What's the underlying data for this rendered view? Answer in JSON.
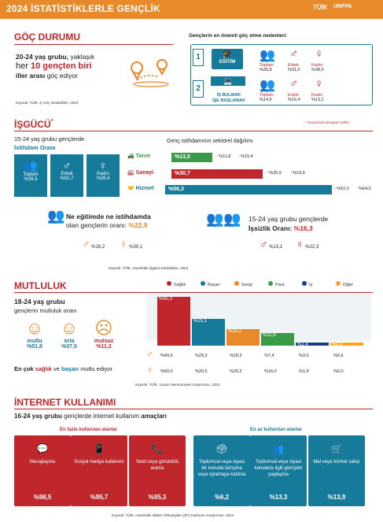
{
  "header": {
    "title": "2024 İSTATİSTİKLERLE GENÇLİK",
    "logo1": "TÜİK",
    "logo2": "UNFPA"
  },
  "goc": {
    "title": "GÖÇ DURUMU",
    "line1a": "20-24 yaş grubu,",
    "line1b": " yaklaşık",
    "line2a": "her ",
    "line2b": "10 gençten biri",
    "line3a": "iller arası",
    "line3b": " göç ediyor",
    "source": "Kaynak: TÜİK, İç Göç İstatistikleri, 2023",
    "reasons_title": "Gençlerin en önemli göç etme nedenleri:",
    "r1": {
      "num": "1",
      "label": "EĞİTİM",
      "toplam": "Toplam",
      "toplam_v": "%35,8",
      "erkek": "Erkek",
      "erkek_v": "%31,6",
      "kadin": "Kadın",
      "kadin_v": "%38,9"
    },
    "r2": {
      "num": "2",
      "label1": "İŞ BULMAK",
      "label2": "İŞE BAŞLAMAK",
      "toplam": "Toplam",
      "toplam_v": "%14,5",
      "erkek": "Erkek",
      "erkek_v": "%16,4",
      "kadin": "Kadın",
      "kadin_v": "%13,1"
    }
  },
  "isgucu": {
    "title": "İŞGÜCÜ",
    "star": "*",
    "note": "* Kurumsal olmayan nüfus",
    "sub1": "15-24 yaş grubu gençlerde",
    "sub2": "İstihdam Oranı",
    "boxes": [
      {
        "l": "Toplam",
        "v": "%39,5"
      },
      {
        "l": "Erkek",
        "v": "%51,7"
      },
      {
        "l": "Kadın",
        "v": "%26,4"
      }
    ],
    "sector_title": "Genç istihdamının sektörel dağılımı",
    "sectors": [
      {
        "name": "Tarım",
        "v": "%13,0",
        "m": "%11,8",
        "f": "%15,4",
        "color": "#3a9a48"
      },
      {
        "name": "Sanayi",
        "v": "%30,7",
        "m": "%35,9",
        "f": "%19,9",
        "color": "#c0272d"
      },
      {
        "name": "Hizmet",
        "v": "%56,3",
        "m": "%52,3",
        "f": "%64,0",
        "color": "#167a9b"
      }
    ],
    "neet_a": "Ne eğitimde ne istihdamda",
    "neet_b": "olan gençlerin oranı: ",
    "neet_v": "%22,9",
    "neet_m": "%16,2",
    "neet_f": "%30,1",
    "unemp_a": "15-24 yaş grubu gençlerde",
    "unemp_b": "İşsizlik Oranı: ",
    "unemp_v": "%16,3",
    "unemp_m": "%13,1",
    "unemp_f": "%22,3",
    "source": "Kaynak: TÜİK, Hanehalkı İşgücü İstatistikleri, 2024"
  },
  "mutluluk": {
    "title": "MUTLULUK",
    "sub1": "18-24 yaş grubu",
    "sub2": "gençlerin mutluluk oranı",
    "faces": [
      {
        "l": "mutlu",
        "v": "%51,8"
      },
      {
        "l": "orta",
        "v": "%37,0"
      },
      {
        "l": "mutsuz",
        "v": "%11,2"
      }
    ],
    "footer_a": "En çok ",
    "footer_b": "sağlık",
    "footer_c": " ve ",
    "footer_d": "başarı",
    "footer_e": " mutlu ediyor",
    "source": "Kaynak: TÜİK, Yaşam Memnuniyeti Araştırması, 2024",
    "legend": [
      {
        "l": "Sağlık",
        "c": "#c0272d"
      },
      {
        "l": "Başarı",
        "c": "#167a9b"
      },
      {
        "l": "Sevgi",
        "c": "#e8892a"
      },
      {
        "l": "Para",
        "c": "#3a9a48"
      },
      {
        "l": "İş",
        "c": "#1f3e8a"
      },
      {
        "l": "Diğer",
        "c": "#f5a623"
      }
    ],
    "chart_data": {
      "type": "bar",
      "categories": [
        "Sağlık",
        "Başarı",
        "Sevgi",
        "Para",
        "İş",
        "Diğer"
      ],
      "series": [
        {
          "values": [
            45.3,
            25.1,
            15.1,
            11.9,
            2.4,
            0.3
          ]
        },
        {
          "values": [
            40.9,
            29.3,
            18.3,
            7.4,
            3.0,
            0.6
          ]
        },
        {
          "values": [
            50.0,
            20.5,
            20.2,
            16.0,
            1.9,
            0.0
          ]
        }
      ],
      "labels_total": [
        "%45,3",
        "%25,1",
        "%15,1",
        "%11,9",
        "%2,4",
        "%0,3"
      ],
      "labels_m": [
        "%40,9",
        "%29,3",
        "%18,3",
        "%7,4",
        "%3,0",
        "%0,6"
      ],
      "labels_f": [
        "%50,0",
        "%20,5",
        "%20,2",
        "%16,0",
        "%1,9",
        "%0,0"
      ]
    }
  },
  "internet": {
    "title": "İNTERNET KULLANIMI",
    "sub_a": "16-24 yaş grubu",
    "sub_b": " gençlerde internet kullanım ",
    "sub_c": "amaçları",
    "most_title": "En fazla kullanılan alanlar",
    "least_title": "En az kullanılan alanlar",
    "most": [
      {
        "l": "Mesajlaşma",
        "v": "%98,5"
      },
      {
        "l": "Sosyal medya kullanımı",
        "v": "%95,7"
      },
      {
        "l": "Sesli veya görüntülü arama",
        "v": "%95,3"
      }
    ],
    "least": [
      {
        "l": "Toplumsal veya siyasi bir konuda tartışma veya oylamaya katılma",
        "v": "%6,2"
      },
      {
        "l": "Toplumsal veya siyasi konularla ilgili görüşleri paylaşma",
        "v": "%13,3"
      },
      {
        "l": "Mal veya hizmet satışı",
        "v": "%13,9"
      }
    ],
    "source": "Kaynak: TÜİK, Hanehalkı Bilişim Teknolojileri (BT) Kullanım Araştırması, 2024"
  }
}
